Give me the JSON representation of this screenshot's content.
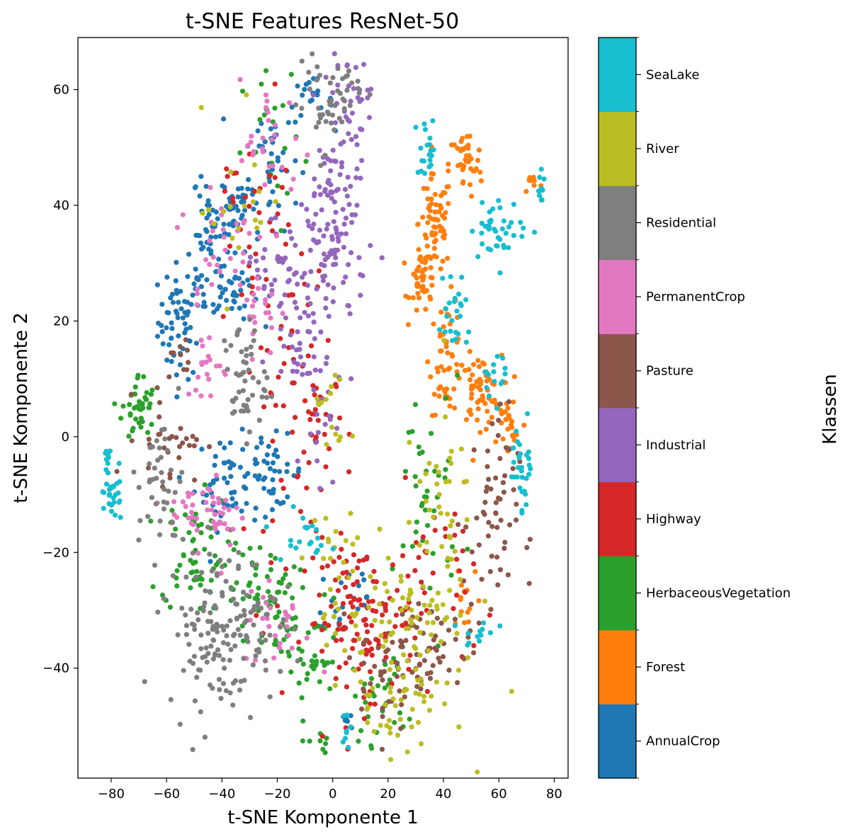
{
  "chart_data": {
    "type": "scatter",
    "title": "t-SNE Features ResNet-50",
    "xlabel": "t-SNE Komponente 1",
    "ylabel": "t-SNE Komponente 2",
    "xlim": [
      -92,
      85
    ],
    "ylim": [
      -59,
      69
    ],
    "xticks": [
      -80,
      -60,
      -40,
      -20,
      0,
      20,
      40,
      60,
      80
    ],
    "xtick_labels": [
      "−80",
      "−60",
      "−40",
      "−20",
      "0",
      "20",
      "40",
      "60",
      "80"
    ],
    "yticks": [
      -40,
      -20,
      0,
      20,
      40,
      60
    ],
    "ytick_labels": [
      "−40",
      "−20",
      "0",
      "20",
      "40",
      "60"
    ],
    "grid": false,
    "colorbar": {
      "label": "Klassen",
      "classes": [
        "AnnualCrop",
        "Forest",
        "HerbaceousVegetation",
        "Highway",
        "Industrial",
        "Pasture",
        "PermanentCrop",
        "Residential",
        "River",
        "SeaLake"
      ],
      "colors": [
        "#1f77b4",
        "#ff7f0e",
        "#2ca02c",
        "#d62728",
        "#9467bd",
        "#8c564b",
        "#e377c2",
        "#7f7f7f",
        "#bcbd22",
        "#17becf"
      ]
    },
    "clusters": [
      {
        "class": "AnnualCrop",
        "x": -55,
        "y": 20,
        "sx": 4,
        "sy": 5,
        "n": 60
      },
      {
        "class": "AnnualCrop",
        "x": -45,
        "y": 30,
        "sx": 4,
        "sy": 6,
        "n": 50
      },
      {
        "class": "AnnualCrop",
        "x": -38,
        "y": 40,
        "sx": 5,
        "sy": 3,
        "n": 40
      },
      {
        "class": "AnnualCrop",
        "x": -22,
        "y": 48,
        "sx": 5,
        "sy": 6,
        "n": 40
      },
      {
        "class": "AnnualCrop",
        "x": -35,
        "y": 25,
        "sx": 4,
        "sy": 3,
        "n": 30
      },
      {
        "class": "AnnualCrop",
        "x": -38,
        "y": -8,
        "sx": 6,
        "sy": 4,
        "n": 50
      },
      {
        "class": "AnnualCrop",
        "x": -22,
        "y": -6,
        "sx": 6,
        "sy": 3,
        "n": 40
      },
      {
        "class": "AnnualCrop",
        "x": -8,
        "y": 58,
        "sx": 4,
        "sy": 2,
        "n": 20
      },
      {
        "class": "AnnualCrop",
        "x": 5,
        "y": -28,
        "sx": 6,
        "sy": 4,
        "n": 20
      },
      {
        "class": "AnnualCrop",
        "x": 5,
        "y": -49,
        "sx": 2,
        "sy": 2,
        "n": 6
      },
      {
        "class": "Forest",
        "x": 37,
        "y": 37,
        "sx": 3,
        "sy": 4,
        "n": 60
      },
      {
        "class": "Forest",
        "x": 33,
        "y": 27,
        "sx": 2.5,
        "sy": 3,
        "n": 50
      },
      {
        "class": "Forest",
        "x": 41,
        "y": 14,
        "sx": 3,
        "sy": 5,
        "n": 50
      },
      {
        "class": "Forest",
        "x": 53,
        "y": 8,
        "sx": 4,
        "sy": 3,
        "n": 60
      },
      {
        "class": "Forest",
        "x": 48,
        "y": 47,
        "sx": 3,
        "sy": 3,
        "n": 40
      },
      {
        "class": "Forest",
        "x": 64,
        "y": 2,
        "sx": 3,
        "sy": 3,
        "n": 25
      },
      {
        "class": "Forest",
        "x": 72,
        "y": 44,
        "sx": 1.5,
        "sy": 1,
        "n": 8
      },
      {
        "class": "Forest",
        "x": 48,
        "y": -27,
        "sx": 3,
        "sy": 4,
        "n": 15
      },
      {
        "class": "HerbaceousVegetation",
        "x": -70,
        "y": 5,
        "sx": 3,
        "sy": 3,
        "n": 40
      },
      {
        "class": "HerbaceousVegetation",
        "x": -50,
        "y": -20,
        "sx": 6,
        "sy": 5,
        "n": 60
      },
      {
        "class": "HerbaceousVegetation",
        "x": -25,
        "y": -28,
        "sx": 6,
        "sy": 5,
        "n": 60
      },
      {
        "class": "HerbaceousVegetation",
        "x": -8,
        "y": -38,
        "sx": 6,
        "sy": 5,
        "n": 40
      },
      {
        "class": "HerbaceousVegetation",
        "x": -20,
        "y": 48,
        "sx": 6,
        "sy": 8,
        "n": 20
      },
      {
        "class": "HerbaceousVegetation",
        "x": 35,
        "y": -10,
        "sx": 6,
        "sy": 10,
        "n": 40
      },
      {
        "class": "HerbaceousVegetation",
        "x": 17,
        "y": -45,
        "sx": 5,
        "sy": 4,
        "n": 30
      },
      {
        "class": "HerbaceousVegetation",
        "x": -5,
        "y": -53,
        "sx": 3,
        "sy": 1,
        "n": 8
      },
      {
        "class": "Highway",
        "x": 10,
        "y": -32,
        "sx": 10,
        "sy": 7,
        "n": 120
      },
      {
        "class": "Highway",
        "x": -15,
        "y": 10,
        "sx": 8,
        "sy": 15,
        "n": 60
      },
      {
        "class": "Highway",
        "x": -5,
        "y": 2,
        "sx": 4,
        "sy": 5,
        "n": 25
      },
      {
        "class": "Highway",
        "x": 35,
        "y": -25,
        "sx": 8,
        "sy": 8,
        "n": 40
      },
      {
        "class": "Highway",
        "x": -30,
        "y": 35,
        "sx": 8,
        "sy": 10,
        "n": 30
      },
      {
        "class": "Industrial",
        "x": 0,
        "y": 35,
        "sx": 6,
        "sy": 10,
        "n": 120
      },
      {
        "class": "Industrial",
        "x": 5,
        "y": 55,
        "sx": 4,
        "sy": 6,
        "n": 40
      },
      {
        "class": "Industrial",
        "x": -12,
        "y": 20,
        "sx": 5,
        "sy": 6,
        "n": 40
      },
      {
        "class": "Industrial",
        "x": -20,
        "y": 30,
        "sx": 6,
        "sy": 5,
        "n": 30
      },
      {
        "class": "Industrial",
        "x": -5,
        "y": 5,
        "sx": 3,
        "sy": 6,
        "n": 20
      },
      {
        "class": "Pasture",
        "x": 57,
        "y": -15,
        "sx": 5,
        "sy": 10,
        "n": 60
      },
      {
        "class": "Pasture",
        "x": 30,
        "y": -37,
        "sx": 10,
        "sy": 4,
        "n": 60
      },
      {
        "class": "Pasture",
        "x": -58,
        "y": 0,
        "sx": 6,
        "sy": 4,
        "n": 30
      },
      {
        "class": "Pasture",
        "x": -55,
        "y": 13,
        "sx": 2,
        "sy": 2,
        "n": 10
      },
      {
        "class": "Pasture",
        "x": 20,
        "y": -42,
        "sx": 6,
        "sy": 5,
        "n": 25
      },
      {
        "class": "PermanentCrop",
        "x": -45,
        "y": -13,
        "sx": 7,
        "sy": 3,
        "n": 50
      },
      {
        "class": "PermanentCrop",
        "x": -40,
        "y": 33,
        "sx": 8,
        "sy": 6,
        "n": 30
      },
      {
        "class": "PermanentCrop",
        "x": -22,
        "y": 50,
        "sx": 6,
        "sy": 6,
        "n": 30
      },
      {
        "class": "PermanentCrop",
        "x": -20,
        "y": -32,
        "sx": 6,
        "sy": 4,
        "n": 30
      },
      {
        "class": "PermanentCrop",
        "x": -45,
        "y": 12,
        "sx": 4,
        "sy": 3,
        "n": 20
      },
      {
        "class": "PermanentCrop",
        "x": -25,
        "y": 22,
        "sx": 4,
        "sy": 4,
        "n": 20
      },
      {
        "class": "Residential",
        "x": -40,
        "y": -33,
        "sx": 10,
        "sy": 7,
        "n": 160
      },
      {
        "class": "Residential",
        "x": -62,
        "y": -8,
        "sx": 4,
        "sy": 6,
        "n": 40
      },
      {
        "class": "Residential",
        "x": -32,
        "y": 10,
        "sx": 4,
        "sy": 5,
        "n": 50
      },
      {
        "class": "Residential",
        "x": -5,
        "y": 57,
        "sx": 4,
        "sy": 4,
        "n": 30
      },
      {
        "class": "Residential",
        "x": 5,
        "y": 60,
        "sx": 3,
        "sy": 2,
        "n": 20
      },
      {
        "class": "River",
        "x": 25,
        "y": -35,
        "sx": 12,
        "sy": 9,
        "n": 100
      },
      {
        "class": "River",
        "x": 38,
        "y": -12,
        "sx": 6,
        "sy": 8,
        "n": 40
      },
      {
        "class": "River",
        "x": 0,
        "y": -25,
        "sx": 6,
        "sy": 6,
        "n": 25
      },
      {
        "class": "River",
        "x": 0,
        "y": 5,
        "sx": 3,
        "sy": 6,
        "n": 15
      },
      {
        "class": "River",
        "x": -35,
        "y": 40,
        "sx": 6,
        "sy": 8,
        "n": 20
      },
      {
        "class": "River",
        "x": 20,
        "y": -48,
        "sx": 5,
        "sy": 3,
        "n": 20
      },
      {
        "class": "SeaLake",
        "x": -80,
        "y": -9,
        "sx": 2,
        "sy": 3,
        "n": 30
      },
      {
        "class": "SeaLake",
        "x": -82,
        "y": -3.5,
        "sx": 1,
        "sy": 0.5,
        "n": 5
      },
      {
        "class": "SeaLake",
        "x": 69,
        "y": -5,
        "sx": 2,
        "sy": 4,
        "n": 30
      },
      {
        "class": "SeaLake",
        "x": 60,
        "y": 36,
        "sx": 5,
        "sy": 2.5,
        "n": 40
      },
      {
        "class": "SeaLake",
        "x": 76,
        "y": 43,
        "sx": 1.2,
        "sy": 1.5,
        "n": 10
      },
      {
        "class": "SeaLake",
        "x": 34,
        "y": 50,
        "sx": 2,
        "sy": 2.5,
        "n": 20
      },
      {
        "class": "SeaLake",
        "x": 44,
        "y": 21,
        "sx": 3,
        "sy": 5,
        "n": 25
      },
      {
        "class": "SeaLake",
        "x": 58,
        "y": 11,
        "sx": 2,
        "sy": 2,
        "n": 15
      },
      {
        "class": "SeaLake",
        "x": -12,
        "y": -17,
        "sx": 5,
        "sy": 2,
        "n": 20
      },
      {
        "class": "SeaLake",
        "x": 53,
        "y": -34,
        "sx": 3,
        "sy": 1.5,
        "n": 12
      },
      {
        "class": "SeaLake",
        "x": 4,
        "y": -50,
        "sx": 1,
        "sy": 2,
        "n": 8
      }
    ]
  }
}
